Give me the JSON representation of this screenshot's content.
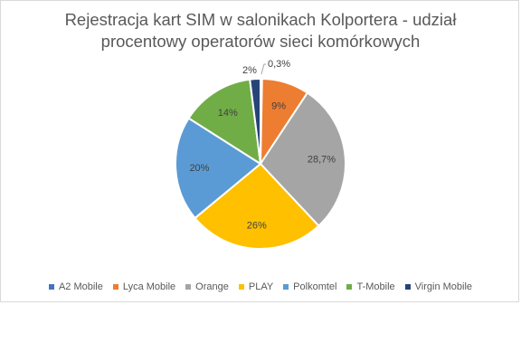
{
  "chart_data": {
    "type": "pie",
    "title_lines": [
      "Rejestracja kart SIM w salonikach Kolportera - udział",
      "procentowy operatorów sieci komórkowych"
    ],
    "categories": [
      "A2 Mobile",
      "Lyca Mobile",
      "Orange",
      "PLAY",
      "Polkomtel",
      "T-Mobile",
      "Virgin Mobile"
    ],
    "values": [
      0.3,
      9,
      28.7,
      26,
      20,
      14,
      2
    ],
    "labels": [
      "0,3%",
      "9%",
      "28,7%",
      "26%",
      "20%",
      "14%",
      "2%"
    ],
    "colors": [
      "#4472c4",
      "#ed7d31",
      "#a5a5a5",
      "#ffc000",
      "#5b9bd5",
      "#70ad47",
      "#264478"
    ],
    "legend_position": "bottom"
  }
}
